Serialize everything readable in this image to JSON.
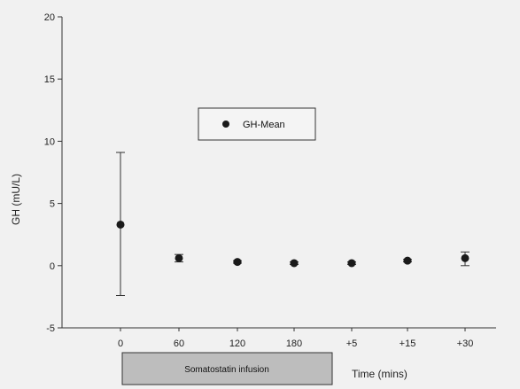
{
  "chart_data": {
    "type": "scatter",
    "categories": [
      "0",
      "60",
      "120",
      "180",
      "+5",
      "+15",
      "+30"
    ],
    "series": [
      {
        "name": "GH-Mean",
        "values": [
          3.3,
          0.6,
          0.3,
          0.2,
          0.2,
          0.4,
          0.6
        ],
        "err_low": [
          -2.4,
          0.3,
          0.2,
          0.1,
          0.1,
          0.3,
          0.0
        ],
        "err_high": [
          9.1,
          0.9,
          0.4,
          0.3,
          0.3,
          0.5,
          1.1
        ]
      }
    ],
    "title": "",
    "xlabel": "Time (mins)",
    "ylabel": "GH (mU/L)",
    "ylim": [
      -5,
      20
    ],
    "yticks": [
      -5,
      0,
      5,
      10,
      15,
      20
    ],
    "grid": false,
    "legend_position": "top-center",
    "marker_color": "#1a1a1a"
  },
  "annotation": {
    "label": "Somatostatin infusion",
    "fill_color": "#bdbdbd"
  }
}
